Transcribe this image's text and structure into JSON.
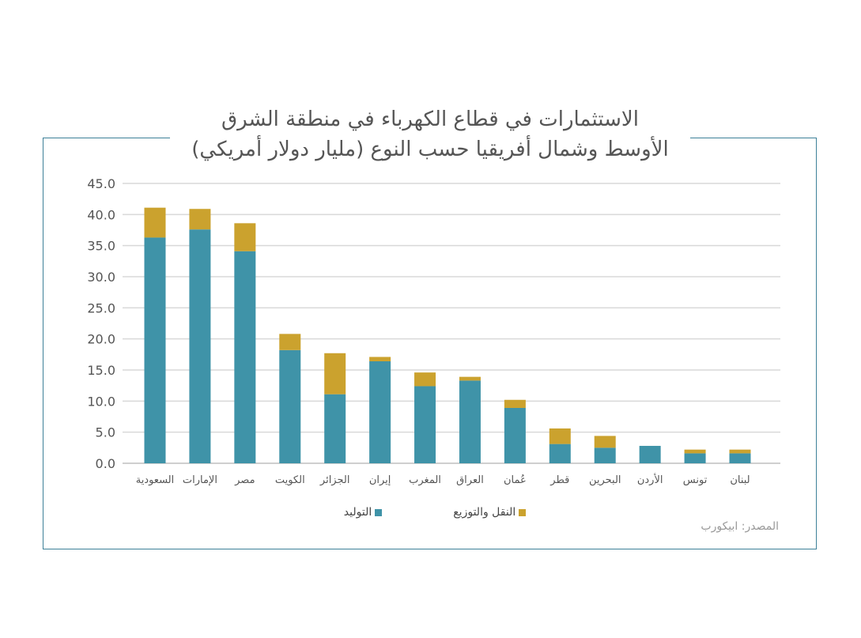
{
  "title": {
    "line1": "الاستثمارات في قطاع الكهرباء في منطقة الشرق",
    "line2": "الأوسط وشمال أفريقيا حسب النوع (مليار دولار أمريكي)"
  },
  "source": "المصدر: ابيكورب",
  "colors": {
    "generation": "#3f93a8",
    "transmission": "#cba22e",
    "grid": "#d9d9d9",
    "frame": "#3d8098"
  },
  "chart_data": {
    "type": "bar",
    "stacked": true,
    "categories": [
      "السعودية",
      "الإمارات",
      "مصر",
      "الكويت",
      "الجزائر",
      "إيران",
      "المغرب",
      "العراق",
      "عُمان",
      "قطر",
      "البحرين",
      "الأردن",
      "تونس",
      "لبنان"
    ],
    "series": [
      {
        "name": "التوليد",
        "color": "#3f93a8",
        "values": [
          36.3,
          37.6,
          34.1,
          18.2,
          11.1,
          16.4,
          12.4,
          13.3,
          8.9,
          3.1,
          2.5,
          2.8,
          1.6,
          1.6
        ]
      },
      {
        "name": "النقل والتوزيع",
        "color": "#cba22e",
        "values": [
          4.8,
          3.3,
          4.5,
          2.6,
          6.6,
          0.7,
          2.2,
          0.6,
          1.3,
          2.5,
          1.9,
          0.0,
          0.6,
          0.6
        ]
      }
    ],
    "ylim": [
      0,
      45
    ],
    "yticks": [
      "0.0",
      "5.0",
      "10.0",
      "15.0",
      "20.0",
      "25.0",
      "30.0",
      "35.0",
      "40.0",
      "45.0"
    ],
    "grid": true,
    "legend_position": "bottom"
  }
}
